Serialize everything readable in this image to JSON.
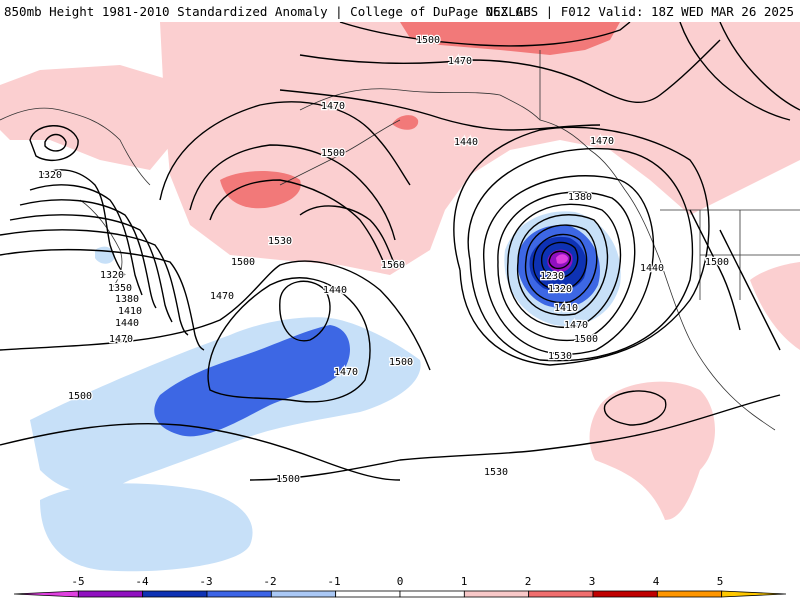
{
  "header": {
    "title_left": "850mb Height 1981-2010 Standardized Anomaly | College of DuPage NEXLAB",
    "title_right": "06Z GFS | F012 Valid: 18Z WED MAR 26 2025"
  },
  "map": {
    "contour_labels": [
      {
        "id": "lbl-1500-top",
        "text": "1500"
      },
      {
        "id": "lbl-1470-top",
        "text": "1470"
      },
      {
        "id": "lbl-1470-nw",
        "text": "1470"
      },
      {
        "id": "lbl-1470-ne",
        "text": "1470"
      },
      {
        "id": "lbl-1440-gulf",
        "text": "1440"
      },
      {
        "id": "lbl-1500-bering",
        "text": "1500"
      },
      {
        "id": "lbl-1530-bering",
        "text": "1530"
      },
      {
        "id": "lbl-1560-bering",
        "text": "1560"
      },
      {
        "id": "lbl-1500-w",
        "text": "1500"
      },
      {
        "id": "lbl-1470-w",
        "text": "1470"
      },
      {
        "id": "lbl-1320-nw",
        "text": "1320"
      },
      {
        "id": "lbl-1320-w",
        "text": "1320"
      },
      {
        "id": "lbl-1350-w",
        "text": "1350"
      },
      {
        "id": "lbl-1380-w",
        "text": "1380"
      },
      {
        "id": "lbl-1410-w",
        "text": "1410"
      },
      {
        "id": "lbl-1440-w",
        "text": "1440"
      },
      {
        "id": "lbl-1470-ww",
        "text": "1470"
      },
      {
        "id": "lbl-1440-mid",
        "text": "1440"
      },
      {
        "id": "lbl-1470-mid",
        "text": "1470"
      },
      {
        "id": "lbl-1500-mid",
        "text": "1500"
      },
      {
        "id": "lbl-1500-sw",
        "text": "1500"
      },
      {
        "id": "lbl-1500-s",
        "text": "1500"
      },
      {
        "id": "lbl-1530-s",
        "text": "1530"
      },
      {
        "id": "lbl-1380-low",
        "text": "1380"
      },
      {
        "id": "lbl-1230-low",
        "text": "1230"
      },
      {
        "id": "lbl-1320-low",
        "text": "1320"
      },
      {
        "id": "lbl-1410-low",
        "text": "1410"
      },
      {
        "id": "lbl-1470-low",
        "text": "1470"
      },
      {
        "id": "lbl-1500-low",
        "text": "1500"
      },
      {
        "id": "lbl-1530-low",
        "text": "1530"
      },
      {
        "id": "lbl-1440-coast",
        "text": "1440"
      },
      {
        "id": "lbl-1500-inland",
        "text": "1500"
      }
    ]
  },
  "colorbar": {
    "ticks": [
      "-5",
      "-4",
      "-3",
      "-2",
      "-1",
      "0",
      "1",
      "2",
      "3",
      "4",
      "5"
    ],
    "colors": [
      "#e040e0",
      "#9010c0",
      "#0e32b4",
      "#3c64e6",
      "#aac8f5",
      "#ffffff",
      "#ffffff",
      "#f8c8c8",
      "#f06e6e",
      "#c00000",
      "#ff9600",
      "#ffc800"
    ]
  }
}
